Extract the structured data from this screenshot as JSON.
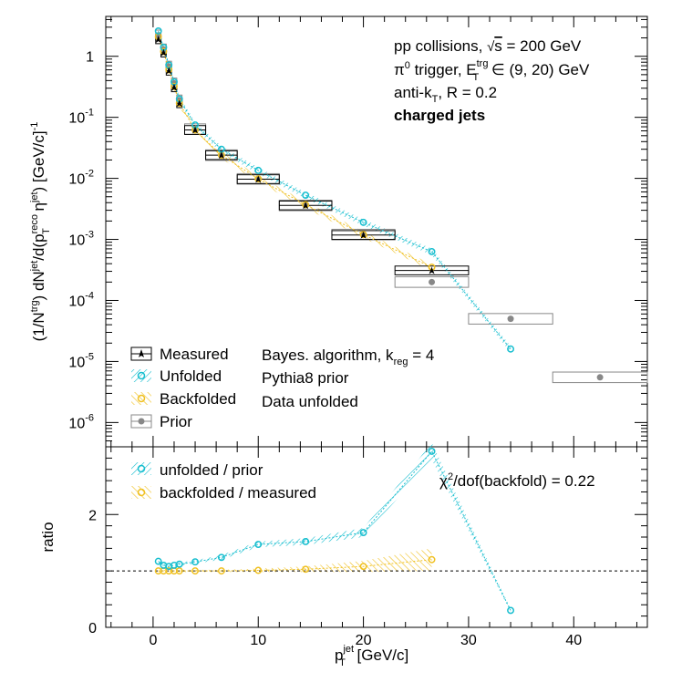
{
  "chart_data": [
    {
      "type": "scatter",
      "panel": "top",
      "y_scale": "log",
      "xlim": [
        -4.5,
        47
      ],
      "ylim": [
        4e-07,
        4.5
      ],
      "ylabel": "(1/N^trg) dN^jet/d(p_T^reco η^jet) [GeV/c]^-1",
      "y_tick_labels": [
        "1",
        "10^-1",
        "10^-2",
        "10^-3",
        "10^-4",
        "10^-5",
        "10^-6"
      ],
      "y_tick_values": [
        1,
        0.1,
        0.01,
        0.001,
        0.0001,
        1e-05,
        1e-06
      ],
      "annotations": {
        "line1": "pp collisions, √s = 200 GeV",
        "line2": "π⁰ trigger, E_T^trg ∈ (9, 20) GeV",
        "line3": "anti-k_T, R = 0.2",
        "line4": "charged jets",
        "line5": "Bayes. algorithm, k_reg = 4",
        "line6": "Pythia8 prior",
        "line7": "Data unfolded"
      },
      "legend": [
        "Measured",
        "Unfolded",
        "Backfolded",
        "Prior"
      ],
      "legend_position": "bottom-left",
      "series": [
        {
          "name": "Measured",
          "color": "#000000",
          "marker": "star",
          "x": [
            0.5,
            1.0,
            1.5,
            2.0,
            2.5,
            4.0,
            6.5,
            10.0,
            14.5,
            20.0,
            26.5
          ],
          "xerr": [
            0.25,
            0.25,
            0.25,
            0.25,
            0.25,
            1.0,
            1.5,
            2.0,
            2.5,
            3.0,
            3.5
          ],
          "y": [
            1.9,
            1.15,
            0.58,
            0.31,
            0.17,
            0.062,
            0.024,
            0.0097,
            0.0036,
            0.00118,
            0.00031
          ]
        },
        {
          "name": "Unfolded",
          "color": "#17becf",
          "marker": "open-circle",
          "x": [
            0.5,
            1.0,
            1.5,
            2.0,
            2.5,
            4.0,
            6.5,
            10.0,
            14.5,
            20.0,
            26.5,
            34.0
          ],
          "y": [
            2.6,
            1.4,
            0.72,
            0.38,
            0.2,
            0.075,
            0.03,
            0.0135,
            0.0053,
            0.0019,
            0.00063,
            1.6e-05
          ]
        },
        {
          "name": "Backfolded",
          "color": "#f0c020",
          "marker": "open-circle",
          "x": [
            0.5,
            1.0,
            1.5,
            2.0,
            2.5,
            4.0,
            6.5,
            10.0,
            14.5,
            20.0,
            26.5
          ],
          "y": [
            2.1,
            1.2,
            0.6,
            0.32,
            0.17,
            0.062,
            0.024,
            0.0098,
            0.0037,
            0.0012,
            0.00035
          ]
        },
        {
          "name": "Prior",
          "color": "#888888",
          "marker": "filled-circle",
          "x": [
            0.5,
            1.0,
            1.5,
            2.0,
            2.5,
            4.0,
            6.5,
            10.0,
            14.5,
            20.0,
            26.5,
            34.0,
            42.5
          ],
          "xerr": [
            0.25,
            0.25,
            0.25,
            0.25,
            0.25,
            1.0,
            1.5,
            2.0,
            2.5,
            3.0,
            3.5,
            4.0,
            4.5
          ],
          "y": [
            2.2,
            1.3,
            0.68,
            0.36,
            0.19,
            0.064,
            0.024,
            0.0098,
            0.0036,
            0.0012,
            0.0002,
            5e-05,
            5.5e-06
          ]
        }
      ]
    },
    {
      "type": "line",
      "panel": "bottom",
      "xlim": [
        -4.5,
        47
      ],
      "ylim": [
        0,
        3.2
      ],
      "xlabel": "p_T^jet [GeV/c]",
      "ylabel": "ratio",
      "x_tick_labels": [
        "0",
        "10",
        "20",
        "30",
        "40"
      ],
      "x_tick_values": [
        0,
        10,
        20,
        30,
        40
      ],
      "y_tick_labels": [
        "0",
        "2"
      ],
      "y_tick_values": [
        0,
        2
      ],
      "reference_line": 1,
      "annotation": "χ²/dof(backfold) = 0.22",
      "legend": [
        "unfolded / prior",
        "backfolded / measured"
      ],
      "legend_position": "top-left",
      "series": [
        {
          "name": "unfolded / prior",
          "color": "#17becf",
          "x": [
            0.5,
            1.0,
            1.5,
            2.0,
            2.5,
            4.0,
            6.5,
            10.0,
            14.5,
            20.0,
            26.5,
            34.0
          ],
          "y": [
            1.17,
            1.1,
            1.08,
            1.1,
            1.12,
            1.16,
            1.24,
            1.47,
            1.52,
            1.68,
            3.12,
            0.3
          ],
          "band_halfwidth": [
            0.03,
            0.03,
            0.03,
            0.03,
            0.03,
            0.03,
            0.04,
            0.05,
            0.06,
            0.08,
            0.15,
            0.03
          ]
        },
        {
          "name": "backfolded / measured",
          "color": "#f0c020",
          "x": [
            0.5,
            1.0,
            1.5,
            2.0,
            2.5,
            4.0,
            6.5,
            10.0,
            14.5,
            20.0,
            26.5
          ],
          "y": [
            1.0,
            1.0,
            1.0,
            1.0,
            1.0,
            1.0,
            1.0,
            1.01,
            1.03,
            1.08,
            1.2
          ],
          "band_halfwidth": [
            0.02,
            0.02,
            0.02,
            0.02,
            0.02,
            0.02,
            0.02,
            0.03,
            0.05,
            0.1,
            0.2
          ]
        }
      ]
    }
  ]
}
